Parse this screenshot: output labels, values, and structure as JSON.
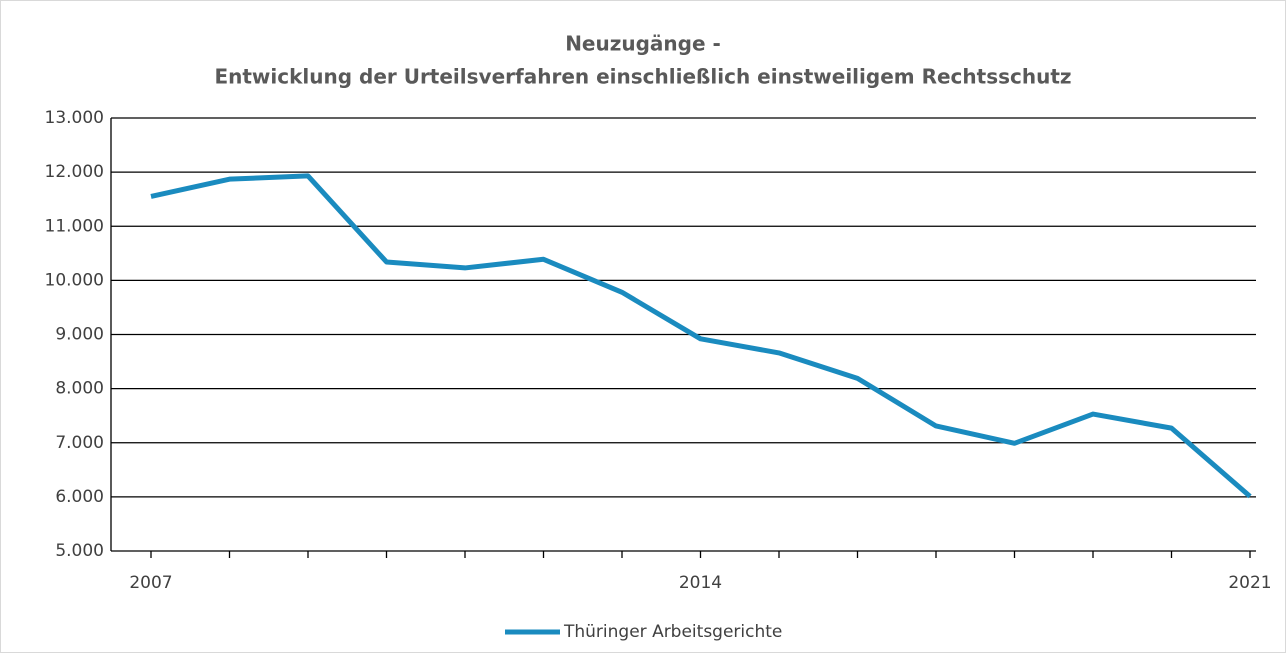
{
  "chart_data": {
    "type": "line",
    "title": "Neuzugänge -",
    "subtitle": "Entwicklung der Urteilsverfahren einschließlich einstweiligem Rechtsschutz",
    "categories": [
      "2007",
      null,
      null,
      null,
      null,
      null,
      null,
      "2014",
      null,
      null,
      null,
      null,
      null,
      null,
      "2021"
    ],
    "series": [
      {
        "name": "Thüringer Arbeitsgerichte",
        "color": "#1a8bbf",
        "values": [
          11550,
          11870,
          11930,
          10340,
          10230,
          10390,
          9780,
          8920,
          8660,
          8190,
          7310,
          6990,
          7530,
          7270,
          6010
        ]
      }
    ],
    "ylim": [
      5000,
      13000
    ],
    "yticks": [
      {
        "value": 5000,
        "label": "5.000"
      },
      {
        "value": 6000,
        "label": "6.000"
      },
      {
        "value": 7000,
        "label": "7.000"
      },
      {
        "value": 8000,
        "label": "8.000"
      },
      {
        "value": 9000,
        "label": "9.000"
      },
      {
        "value": 10000,
        "label": "10.000"
      },
      {
        "value": 11000,
        "label": "11.000"
      },
      {
        "value": 12000,
        "label": "12.000"
      },
      {
        "value": 13000,
        "label": "13.000"
      }
    ],
    "grid": true,
    "legend": "bottom"
  }
}
